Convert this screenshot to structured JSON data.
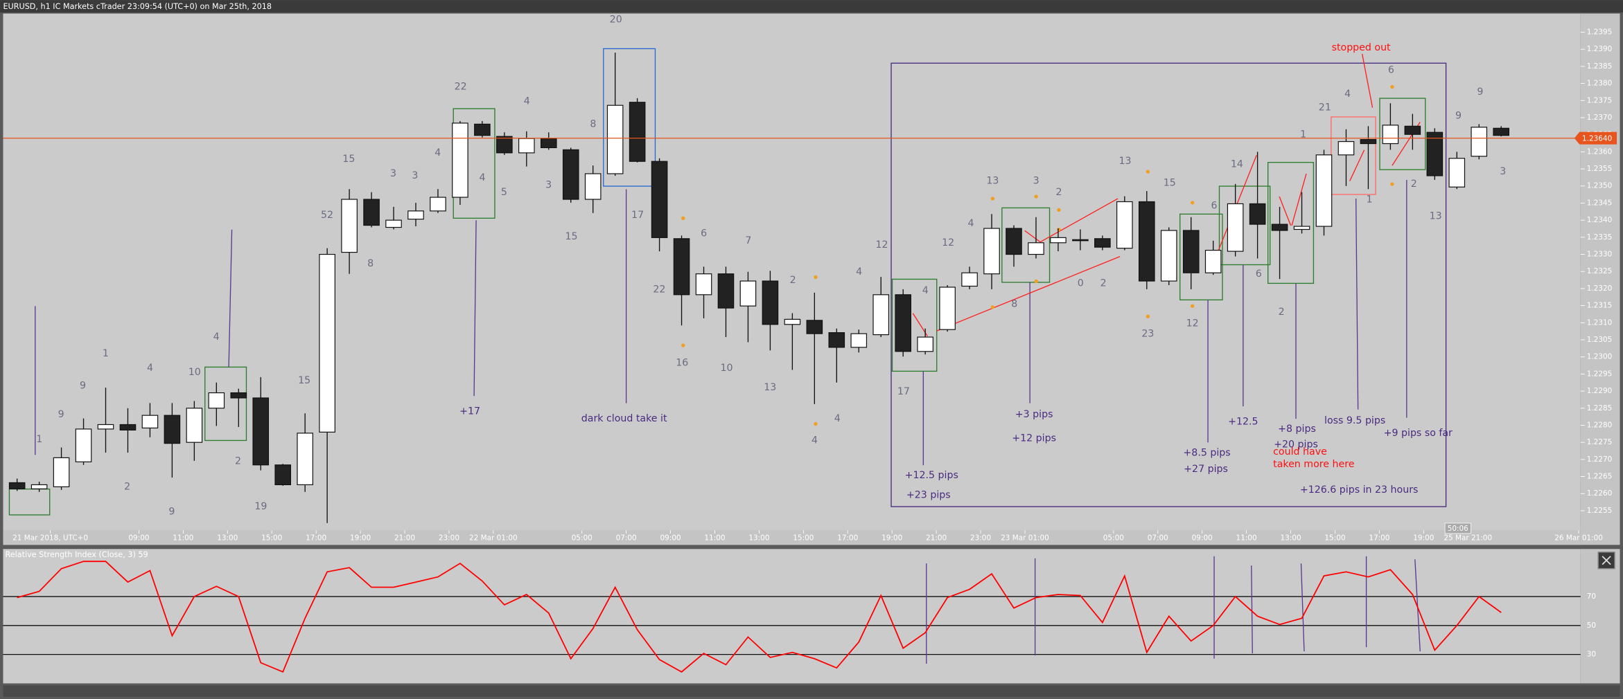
{
  "title_bar": "EURUSD, h1 IC Markets cTrader 23:09:54 (UTC+0) on Mar 25th, 2018",
  "chart_data": [
    {
      "type": "candlestick",
      "categories": [
        null,
        "21 Mar 2018, UTC+0",
        null,
        null,
        null,
        "09:00",
        null,
        "11:00",
        null,
        "13:00",
        null,
        "15:00",
        null,
        "17:00",
        null,
        "19:00",
        null,
        "21:00",
        null,
        "23:00",
        null,
        "22 Mar 01:00",
        null,
        null,
        null,
        "05:00",
        null,
        "07:00",
        null,
        "09:00",
        null,
        "11:00",
        null,
        "13:00",
        null,
        "15:00",
        null,
        "17:00",
        null,
        "19:00",
        null,
        "21:00",
        null,
        "23:00",
        null,
        "23 Mar 01:00",
        null,
        null,
        null,
        "05:00",
        null,
        "07:00",
        null,
        "09:00",
        null,
        "11:00",
        null,
        "13:00",
        null,
        "15:00",
        null,
        "17:00",
        null,
        "19:00",
        null,
        "25 Mar 21:00",
        null,
        null,
        null,
        null,
        "26 Mar 01:00"
      ],
      "open": [
        1.22632,
        1.22614,
        1.2262,
        1.22693,
        1.22789,
        1.22802,
        1.22792,
        1.22829,
        1.2275,
        1.2285,
        1.22895,
        1.2288,
        1.22684,
        1.22626,
        1.2278,
        1.23306,
        1.23461,
        1.23379,
        1.23403,
        1.23427,
        1.23467,
        1.23681,
        1.23645,
        1.23597,
        1.23639,
        1.23606,
        1.23461,
        1.23536,
        1.23745,
        1.23572,
        1.23346,
        1.23182,
        1.23243,
        1.23149,
        1.23222,
        1.23095,
        1.23107,
        1.23071,
        1.23028,
        1.23065,
        1.23182,
        1.23016,
        1.2308,
        1.23207,
        1.23243,
        1.23376,
        1.233,
        1.23334,
        1.23343,
        1.23346,
        1.23318,
        1.23454,
        1.23222,
        1.2337,
        1.23246,
        1.23309,
        1.23448,
        1.23388,
        1.23373,
        1.23382,
        1.23591,
        1.23636,
        1.23624,
        1.23675,
        1.23657,
        1.23497,
        1.23587,
        1.23669,
        null,
        null,
        null
      ],
      "high": [
        1.22644,
        1.22635,
        1.22735,
        1.2282,
        1.2291,
        1.2285,
        1.22865,
        1.22865,
        1.22871,
        1.22925,
        1.22907,
        1.22941,
        1.22687,
        1.22835,
        1.23318,
        1.23491,
        1.23482,
        1.23439,
        1.23451,
        1.23491,
        1.2369,
        1.2369,
        1.23657,
        1.2366,
        1.23657,
        1.23612,
        1.2356,
        1.2389,
        1.23757,
        1.23581,
        1.23355,
        1.23264,
        1.23264,
        1.23249,
        1.23252,
        1.23128,
        1.23188,
        1.23083,
        1.2308,
        1.23234,
        1.23198,
        1.23083,
        1.2321,
        1.23264,
        1.23418,
        1.23385,
        1.23409,
        1.23376,
        1.23373,
        1.23355,
        1.2347,
        1.23485,
        1.23379,
        1.23409,
        1.2334,
        1.23506,
        1.236,
        1.23439,
        1.23482,
        1.23606,
        1.23666,
        1.23675,
        1.23742,
        1.23711,
        1.23669,
        1.236,
        1.23681,
        1.23675,
        null,
        null,
        null
      ],
      "low": [
        1.22608,
        1.22605,
        1.22611,
        1.22684,
        1.2272,
        1.2272,
        1.22765,
        1.22647,
        1.22696,
        1.22798,
        1.22795,
        1.22668,
        1.22623,
        1.22605,
        1.22514,
        1.23243,
        1.23379,
        1.23373,
        1.23382,
        1.23421,
        1.23445,
        1.23642,
        1.23591,
        1.23557,
        1.23606,
        1.23451,
        1.23421,
        1.2353,
        1.23569,
        1.23309,
        1.23092,
        1.23113,
        1.23058,
        1.23043,
        1.23019,
        1.22962,
        1.22862,
        1.22925,
        1.23013,
        1.23058,
        1.23001,
        1.23007,
        1.23074,
        1.23198,
        1.23198,
        1.23264,
        1.23288,
        1.23309,
        1.23312,
        1.23312,
        1.23312,
        1.23198,
        1.2321,
        1.23198,
        1.2324,
        1.23294,
        1.23288,
        1.23228,
        1.23361,
        1.23355,
        1.235,
        1.23491,
        1.23606,
        1.23606,
        1.23518,
        1.23491,
        1.23578,
        1.23645,
        null,
        null,
        null
      ],
      "close": [
        1.22614,
        1.22626,
        1.22705,
        1.22789,
        1.22802,
        1.22786,
        1.22829,
        1.22747,
        1.2285,
        1.22895,
        1.2288,
        1.22684,
        1.22626,
        1.22777,
        1.233,
        1.23461,
        1.23385,
        1.234,
        1.23427,
        1.23467,
        1.23684,
        1.23648,
        1.23597,
        1.23639,
        1.23612,
        1.23461,
        1.23536,
        1.23736,
        1.23572,
        1.23349,
        1.23182,
        1.23243,
        1.23143,
        1.23222,
        1.23095,
        1.2311,
        1.23068,
        1.23028,
        1.23068,
        1.23182,
        1.23016,
        1.23058,
        1.23204,
        1.23246,
        1.23376,
        1.233,
        1.23334,
        1.23349,
        1.2334,
        1.23321,
        1.23454,
        1.23222,
        1.2337,
        1.23246,
        1.23312,
        1.23448,
        1.23388,
        1.2337,
        1.23382,
        1.23591,
        1.2363,
        1.23624,
        1.23678,
        1.23651,
        1.2353,
        1.23581,
        1.23672,
        1.23648,
        null,
        null,
        null
      ],
      "ylim": [
        1.225,
        1.24
      ],
      "yticks": [
        1.2255,
        {
          "value": 1.226,
          "label": "1.2260"
        },
        1.2265,
        {
          "value": 1.227,
          "label": "1.2270"
        },
        1.2275,
        {
          "value": 1.228,
          "label": "1.2280"
        },
        1.2285,
        {
          "value": 1.229,
          "label": "1.2290"
        },
        1.2295,
        {
          "value": 1.23,
          "label": "1.2300"
        },
        1.2305,
        {
          "value": 1.231,
          "label": "1.2310"
        },
        1.2315,
        {
          "value": 1.232,
          "label": "1.2320"
        },
        1.2325,
        {
          "value": 1.233,
          "label": "1.2330"
        },
        1.2335,
        {
          "value": 1.234,
          "label": "1.2340"
        },
        1.2345,
        {
          "value": 1.235,
          "label": "1.2350"
        },
        1.2355,
        {
          "value": 1.236,
          "label": "1.2360"
        },
        1.2365,
        {
          "value": 1.237,
          "label": "1.2370"
        },
        1.2375,
        {
          "value": 1.238,
          "label": "1.2380"
        },
        1.2385,
        {
          "value": 1.239,
          "label": "1.2390"
        },
        1.2395
      ],
      "current_price": {
        "value": 1.2364,
        "label": "1.23640"
      },
      "countdown": "50:06",
      "annotations": [
        "1",
        "9",
        "1",
        "9",
        "2",
        "4",
        "9",
        "10",
        "4",
        "2",
        "19",
        "15",
        "52",
        "8",
        "15",
        "3",
        "3",
        "4",
        "22",
        "4",
        "5",
        "4",
        "3",
        "15",
        "8",
        "20",
        "17",
        "22",
        "16",
        "6",
        "10",
        "7",
        "13",
        "2",
        "4",
        "4",
        "4",
        "12",
        "17",
        "4",
        "12",
        "4",
        "13",
        "8",
        "3",
        "2",
        "0",
        "2",
        "13",
        "15",
        "23",
        "12",
        "6",
        "14",
        "6",
        "2",
        "1",
        "21",
        "4",
        "1",
        "6",
        "2",
        "13",
        "9",
        "9",
        "3"
      ],
      "pip_notes": [
        "+17",
        "dark cloud take it",
        "+12.5 pips",
        "+23 pips",
        "+3 pips",
        "+12 pips",
        "+8.5 pips",
        "+27 pips",
        "+12.5",
        "+8 pips",
        "+20 pips",
        "loss  9.5 pips",
        "+9  pips so far",
        "+126.6 pips in 23 hours"
      ],
      "red_notes": [
        "stopped out",
        "could have",
        "taken more here"
      ]
    },
    {
      "type": "line",
      "title": "Relative Strength Index (Close, 3) 59",
      "color": "#ff0000",
      "values": [
        69.3,
        73.6,
        89.3,
        94.3,
        94.3,
        80,
        87.9,
        42.9,
        70,
        77.1,
        70,
        24.3,
        17.9,
        55,
        87.1,
        90,
        76.4,
        76.4,
        80,
        83.6,
        92.9,
        80.7,
        64.3,
        71.4,
        58.6,
        27.1,
        47.9,
        76.4,
        47.1,
        26.4,
        17.9,
        30.7,
        22.9,
        42.1,
        27.9,
        31.4,
        27.1,
        20.7,
        38.6,
        70.7,
        34.3,
        45,
        69.3,
        75,
        85.7,
        62.1,
        69.3,
        71.4,
        70.7,
        52.1,
        84.3,
        31.4,
        56.4,
        39.3,
        50,
        70,
        56.4,
        50.7,
        55,
        84.3,
        87.1,
        83.6,
        88.6,
        71.4,
        32.9,
        50,
        70,
        59,
        null,
        null,
        null
      ],
      "ylim": [
        10,
        100
      ],
      "yticks": [
        30,
        50,
        70
      ]
    }
  ]
}
